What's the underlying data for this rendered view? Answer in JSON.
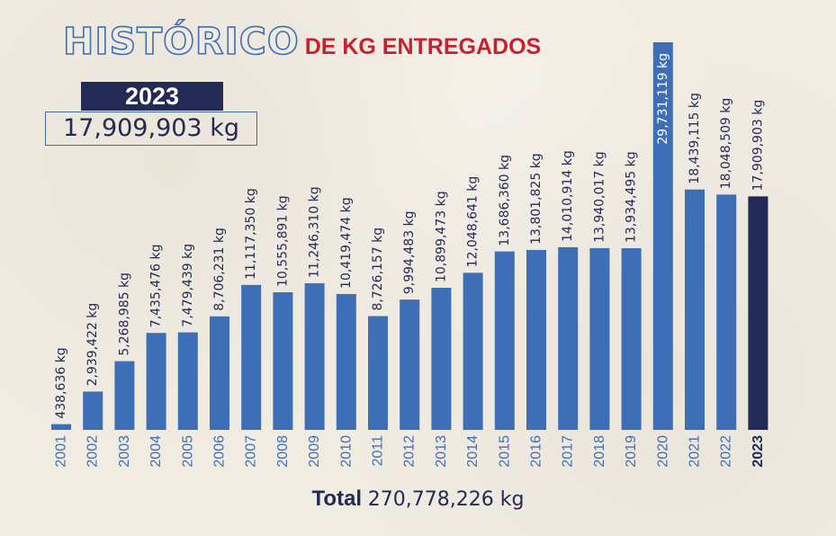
{
  "title": {
    "main": "HISTÓRICO",
    "sub": "DE KG ENTREGADOS"
  },
  "highlight": {
    "year": "2023",
    "value": "17,909,903 kg"
  },
  "total": {
    "label": "Total",
    "value": "270,778,226 kg"
  },
  "colors": {
    "bar": "#3e6eb6",
    "highlight_bar": "#222a55",
    "year_label": "#3e6eb6",
    "highlight_year_label": "#222a55",
    "value_label": "#222a55",
    "title_outline": "#3e6eb6",
    "subtitle": "#c8202f"
  },
  "chart_data": {
    "type": "bar",
    "categories": [
      "2001",
      "2002",
      "2003",
      "2004",
      "2005",
      "2006",
      "2007",
      "2008",
      "2009",
      "2010",
      "2011",
      "2012",
      "2013",
      "2014",
      "2015",
      "2016",
      "2017",
      "2018",
      "2019",
      "2020",
      "2021",
      "2022",
      "2023"
    ],
    "values": [
      438636,
      2939422,
      5268985,
      7435476,
      7479439,
      8706231,
      11117350,
      10555891,
      11246310,
      10419474,
      8726157,
      9994483,
      10899473,
      12048641,
      13686360,
      13801825,
      14010914,
      13940017,
      13934495,
      29731119,
      18439115,
      18048509,
      17909903
    ],
    "value_labels": [
      "438,636 kg",
      "2,939,422 kg",
      "5,268,985 kg",
      "7,435,476 kg",
      "7,479,439 kg",
      "8,706,231 kg",
      "11,117,350 kg",
      "10,555,891 kg",
      "11,246,310 kg",
      "10,419,474 kg",
      "8,726,157 kg",
      "9,994,483 kg",
      "10,899,473 kg",
      "12,048,641 kg",
      "13,686,360 kg",
      "13,801,825 kg",
      "14,010,914 kg",
      "13,940,017 kg",
      "13,934,495 kg",
      "29,731,119 kg",
      "18,439,115 kg",
      "18,048,509 kg",
      "17,909,903 kg"
    ],
    "highlight_category": "2023",
    "title": "HISTÓRICO DE KG ENTREGADOS",
    "xlabel": "",
    "ylabel": "",
    "ylim": [
      0,
      29731119
    ],
    "grid": false,
    "legend": "none"
  }
}
